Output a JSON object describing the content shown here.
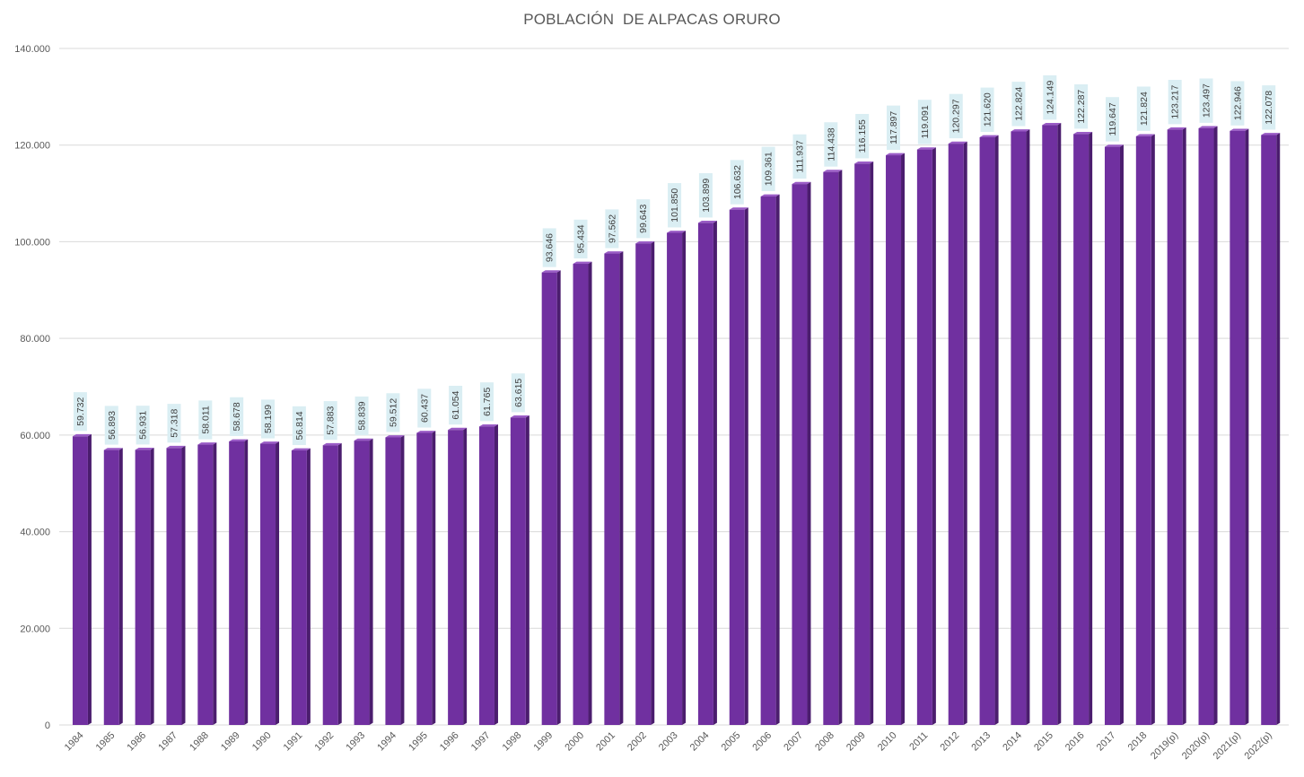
{
  "chart_data": {
    "type": "bar",
    "title": "POBLACIÓN  DE ALPACAS ORURO",
    "xlabel": "",
    "ylabel": "",
    "ylim": [
      0,
      140000
    ],
    "y_ticks": [
      0,
      20000,
      40000,
      60000,
      80000,
      100000,
      120000,
      140000
    ],
    "y_tick_labels": [
      "0",
      "20.000",
      "40.000",
      "60.000",
      "80.000",
      "100.000",
      "120.000",
      "140.000"
    ],
    "grid": true,
    "legend": "none",
    "categories": [
      "1984",
      "1985",
      "1986",
      "1987",
      "1988",
      "1989",
      "1990",
      "1991",
      "1992",
      "1993",
      "1994",
      "1995",
      "1996",
      "1997",
      "1998",
      "1999",
      "2000",
      "2001",
      "2002",
      "2003",
      "2004",
      "2005",
      "2006",
      "2007",
      "2008",
      "2009",
      "2010",
      "2011",
      "2012",
      "2013",
      "2014",
      "2015",
      "2016",
      "2017",
      "2018",
      "2019(p)",
      "2020(p)",
      "2021(p)",
      "2022(p)"
    ],
    "values": [
      59732,
      56893,
      56931,
      57318,
      58011,
      58678,
      58199,
      56814,
      57883,
      58839,
      59512,
      60437,
      61054,
      61765,
      63615,
      93646,
      95434,
      97562,
      99643,
      101850,
      103899,
      106632,
      109361,
      111937,
      114438,
      116155,
      117897,
      119091,
      120297,
      121620,
      122824,
      124149,
      122287,
      119647,
      121824,
      123217,
      123497,
      122946,
      122078
    ],
    "data_labels": [
      "59.732",
      "56.893",
      "56.931",
      "57.318",
      "58.011",
      "58.678",
      "58.199",
      "56.814",
      "57.883",
      "58.839",
      "59.512",
      "60.437",
      "61.054",
      "61.765",
      "63.615",
      "93.646",
      "95.434",
      "97.562",
      "99.643",
      "101.850",
      "103.899",
      "106.632",
      "109.361",
      "111.937",
      "114.438",
      "116.155",
      "117.897",
      "119.091",
      "120.297",
      "121.620",
      "122.824",
      "124.149",
      "122.287",
      "119.647",
      "121.824",
      "123.217",
      "123.497",
      "122.946",
      "122.078"
    ],
    "colors": {
      "bar_front": "#7030a0",
      "bar_side": "#4b1d6e",
      "bar_top": "#9a5cc6",
      "gridline": "#d9d9d9",
      "label_box": "#daeef3",
      "text": "#595959"
    }
  }
}
